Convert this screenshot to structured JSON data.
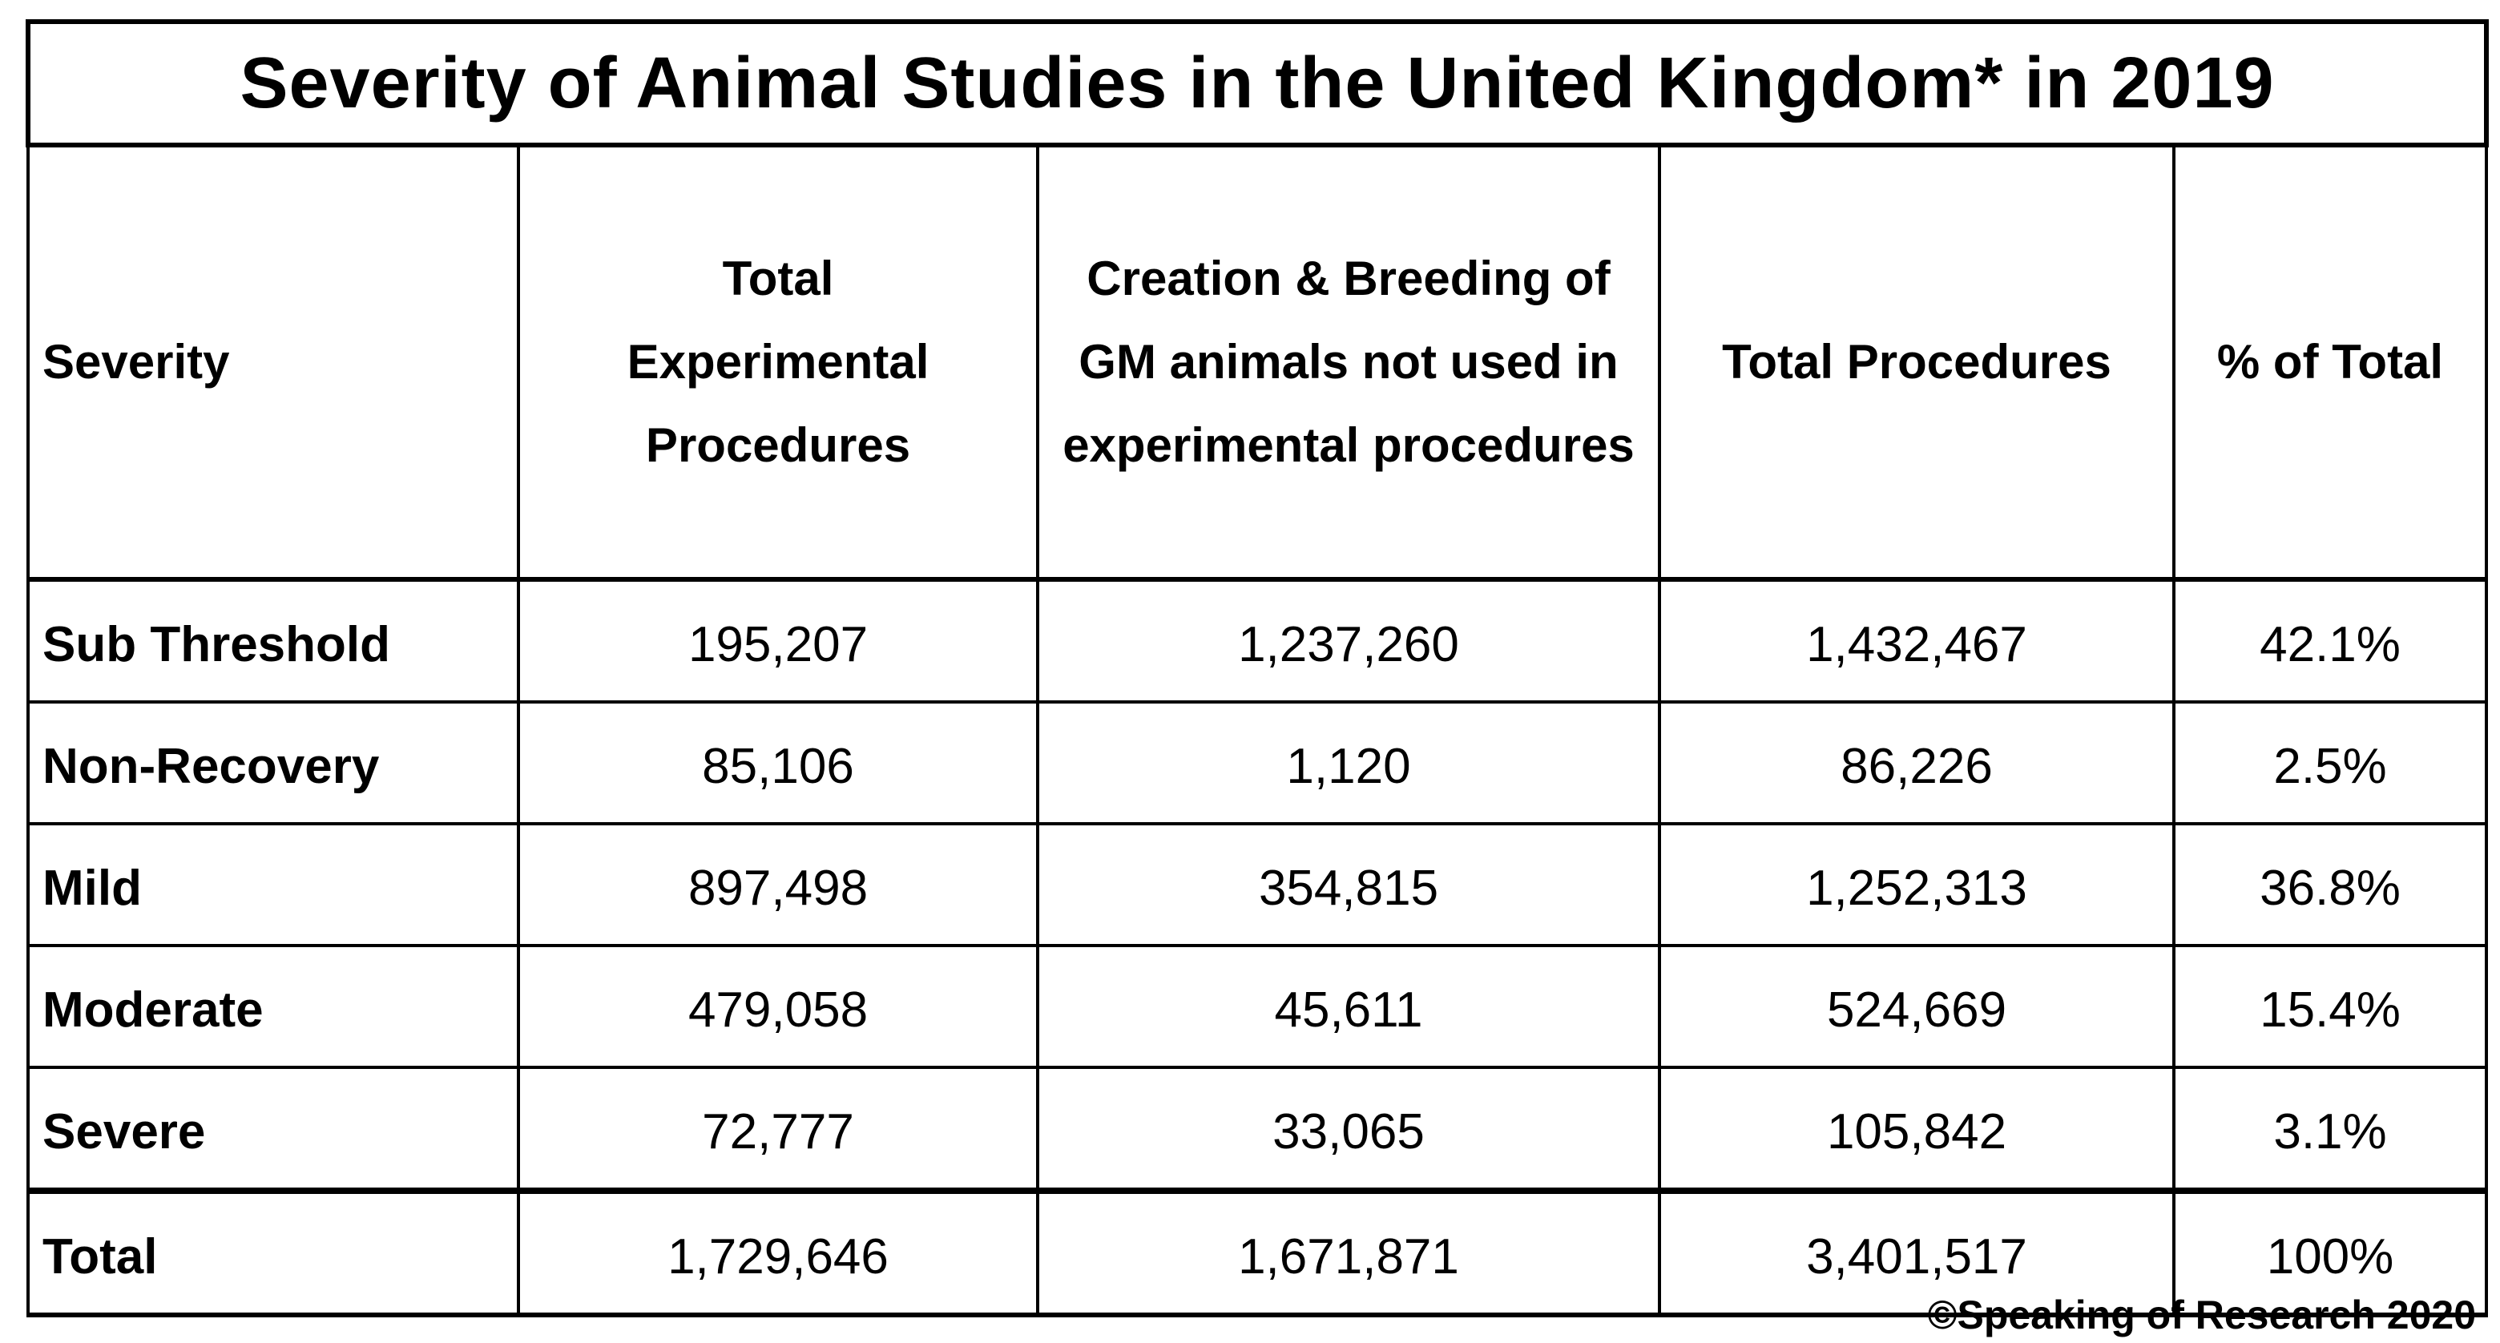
{
  "title": "Severity of Animal Studies in the United Kingdom* in 2019",
  "headers": [
    "Severity",
    "Total Experimental Procedures",
    "Creation & Breeding of GM animals not used in experimental procedures",
    "Total Procedures",
    "% of Total"
  ],
  "rows": [
    [
      "Sub Threshold",
      "195,207",
      "1,237,260",
      "1,432,467",
      "42.1%"
    ],
    [
      "Non-Recovery",
      "85,106",
      "1,120",
      "86,226",
      "2.5%"
    ],
    [
      "Mild",
      "897,498",
      "354,815",
      "1,252,313",
      "36.8%"
    ],
    [
      "Moderate",
      "479,058",
      "45,611",
      "524,669",
      "15.4%"
    ],
    [
      "Severe",
      "72,777",
      "33,065",
      "105,842",
      "3.1%"
    ]
  ],
  "total": [
    "Total",
    "1,729,646",
    "1,671,871",
    "3,401,517",
    "100%"
  ],
  "credit": "©Speaking of Research 2020"
}
